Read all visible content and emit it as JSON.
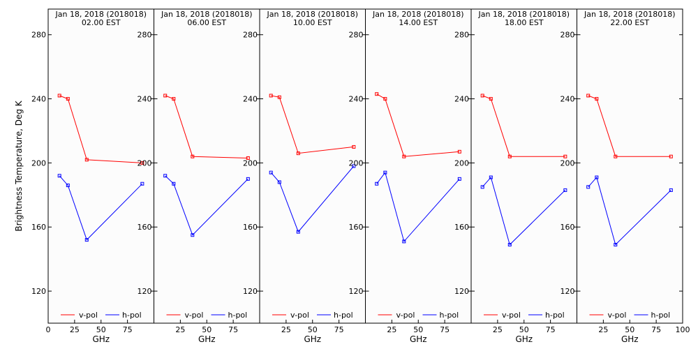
{
  "ylabel": "Brightness Temperature, Deg K",
  "xlabel": "GHz",
  "legend": {
    "vpol": "v-pol",
    "hpol": "h-pol"
  },
  "colors": {
    "vpol": "#ff0000",
    "hpol": "#0000ff",
    "panel_bg": "#fcfcfc"
  },
  "yticks": [
    "120",
    "160",
    "200",
    "240",
    "280"
  ],
  "xticks": [
    "0",
    "25",
    "50",
    "75",
    "100"
  ],
  "chart_data": [
    {
      "type": "line",
      "title_line1": "Jan 18, 2018 (2018018)",
      "title_line2": "02.00 EST",
      "xlabel": "GHz",
      "ylabel": "Brightness Temperature, Deg K",
      "xlim": [
        0,
        100
      ],
      "ylim": [
        100,
        296
      ],
      "x": [
        10.7,
        18.7,
        36.5,
        89
      ],
      "series": [
        {
          "name": "v-pol",
          "values": [
            242,
            240,
            202,
            200
          ]
        },
        {
          "name": "h-pol",
          "values": [
            192,
            186,
            152,
            187
          ]
        }
      ]
    },
    {
      "type": "line",
      "title_line1": "Jan 18, 2018 (2018018)",
      "title_line2": "06.00 EST",
      "xlabel": "GHz",
      "ylabel": "Brightness Temperature, Deg K",
      "xlim": [
        0,
        100
      ],
      "ylim": [
        100,
        296
      ],
      "x": [
        10.7,
        18.7,
        36.5,
        89
      ],
      "series": [
        {
          "name": "v-pol",
          "values": [
            242,
            240,
            204,
            203
          ]
        },
        {
          "name": "h-pol",
          "values": [
            192,
            187,
            155,
            190
          ]
        }
      ]
    },
    {
      "type": "line",
      "title_line1": "Jan 18, 2018 (2018018)",
      "title_line2": "10.00 EST",
      "xlabel": "GHz",
      "ylabel": "Brightness Temperature, Deg K",
      "xlim": [
        0,
        100
      ],
      "ylim": [
        100,
        296
      ],
      "x": [
        10.7,
        18.7,
        36.5,
        89
      ],
      "series": [
        {
          "name": "v-pol",
          "values": [
            242,
            241,
            206,
            210
          ]
        },
        {
          "name": "h-pol",
          "values": [
            194,
            188,
            157,
            198
          ]
        }
      ]
    },
    {
      "type": "line",
      "title_line1": "Jan 18, 2018 (2018018)",
      "title_line2": "14.00 EST",
      "xlabel": "GHz",
      "ylabel": "Brightness Temperature, Deg K",
      "xlim": [
        0,
        100
      ],
      "ylim": [
        100,
        296
      ],
      "x": [
        10.7,
        18.7,
        36.5,
        89
      ],
      "series": [
        {
          "name": "v-pol",
          "values": [
            243,
            240,
            204,
            207
          ]
        },
        {
          "name": "h-pol",
          "values": [
            187,
            194,
            151,
            190
          ]
        }
      ]
    },
    {
      "type": "line",
      "title_line1": "Jan 18, 2018 (2018018)",
      "title_line2": "18.00 EST",
      "xlabel": "GHz",
      "ylabel": "Brightness Temperature, Deg K",
      "xlim": [
        0,
        100
      ],
      "ylim": [
        100,
        296
      ],
      "x": [
        10.7,
        18.7,
        36.5,
        89
      ],
      "series": [
        {
          "name": "v-pol",
          "values": [
            242,
            240,
            204,
            204
          ]
        },
        {
          "name": "h-pol",
          "values": [
            185,
            191,
            149,
            183
          ]
        }
      ]
    },
    {
      "type": "line",
      "title_line1": "Jan 18, 2018 (2018018)",
      "title_line2": "22.00 EST",
      "xlabel": "GHz",
      "ylabel": "Brightness Temperature, Deg K",
      "xlim": [
        0,
        100
      ],
      "ylim": [
        100,
        296
      ],
      "x": [
        10.7,
        18.7,
        36.5,
        89
      ],
      "series": [
        {
          "name": "v-pol",
          "values": [
            242,
            240,
            204,
            204
          ]
        },
        {
          "name": "h-pol",
          "values": [
            185,
            191,
            149,
            183
          ]
        }
      ]
    }
  ]
}
